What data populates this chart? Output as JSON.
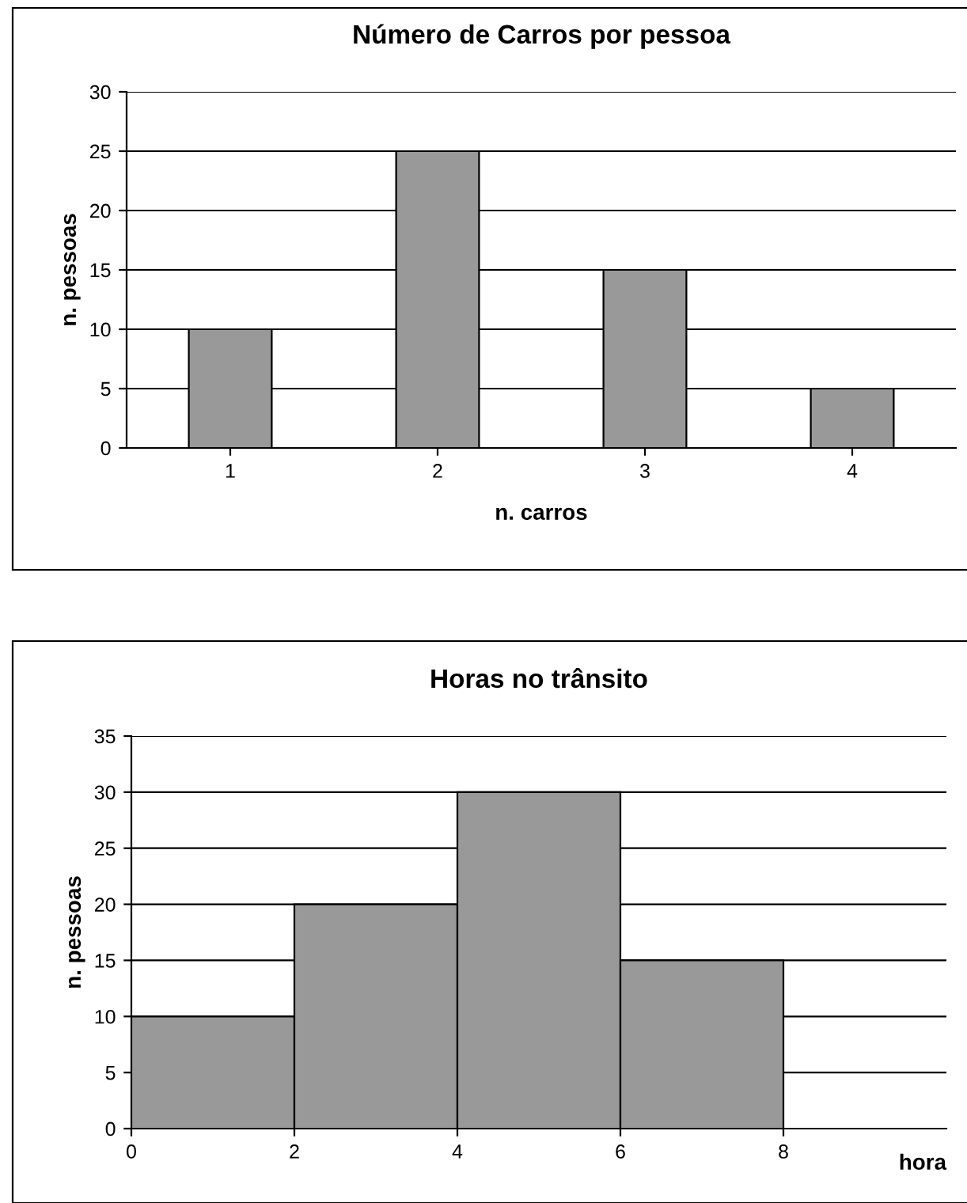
{
  "chart_data": [
    {
      "type": "bar",
      "title": "Número de Carros por pessoa",
      "xlabel": "n. carros",
      "ylabel": "n. pessoas",
      "categories": [
        "1",
        "2",
        "3",
        "4"
      ],
      "values": [
        10,
        25,
        15,
        5
      ],
      "color": "#999999",
      "ylim": [
        0,
        30
      ],
      "yticks": [
        0,
        5,
        10,
        15,
        20,
        25,
        30
      ],
      "grid": "y"
    },
    {
      "type": "histogram",
      "title": "Horas no trânsito",
      "xlabel": "hora",
      "ylabel": "n. pessoas",
      "bins": [
        0,
        2,
        4,
        6,
        8
      ],
      "values": [
        10,
        20,
        30,
        15
      ],
      "color": "#999999",
      "xlim": [
        0,
        10
      ],
      "xticks": [
        0,
        2,
        4,
        6,
        8
      ],
      "ylim": [
        0,
        35
      ],
      "yticks": [
        0,
        5,
        10,
        15,
        20,
        25,
        30,
        35
      ],
      "grid": "y"
    }
  ]
}
